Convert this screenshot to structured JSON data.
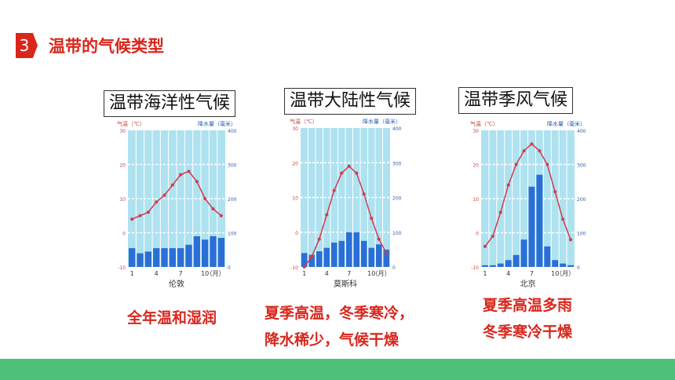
{
  "section": {
    "number": "3",
    "title": "温带的气候类型"
  },
  "charts": [
    {
      "title": "温带海洋性气候",
      "temp_label": "气温（℃）",
      "precip_label": "降水量（毫米）",
      "city": "伦敦",
      "caption": [
        "全年温和湿润"
      ]
    },
    {
      "title": "温带大陆性气候",
      "temp_label": "气温（℃）",
      "precip_label": "降水量（毫米）",
      "city": "莫斯科",
      "caption": [
        "夏季高温，冬季寒冷，",
        "降水稀少，气候干燥"
      ]
    },
    {
      "title": "温带季风气候",
      "temp_label": "气温（℃）",
      "precip_label": "降水量（毫米）",
      "city": "北京",
      "caption": [
        "夏季高温多雨",
        "冬季寒冷干燥"
      ]
    }
  ],
  "chart_data": [
    {
      "type": "bar",
      "title": "温带海洋性气候",
      "xlabel": "伦敦",
      "x_ticks": [
        "1",
        "4",
        "7",
        "10",
        "（月）"
      ],
      "temp_ticks": [
        "-10",
        "0",
        "10",
        "20",
        "30"
      ],
      "precip_ticks": [
        "0",
        "100",
        "200",
        "300",
        "400"
      ],
      "temp_range": [
        -10,
        30
      ],
      "precip_range": [
        0,
        400
      ],
      "temperature": [
        4,
        5,
        6,
        9,
        11,
        14,
        17,
        18,
        15,
        10,
        7,
        5
      ],
      "precipitation": [
        55,
        40,
        45,
        55,
        55,
        55,
        55,
        65,
        90,
        80,
        90,
        85
      ]
    },
    {
      "type": "bar",
      "title": "温带大陆性气候",
      "xlabel": "莫斯科",
      "x_ticks": [
        "1",
        "4",
        "7",
        "10",
        "（月）"
      ],
      "temp_ticks": [
        "-10",
        "0",
        "10",
        "20",
        "30"
      ],
      "precip_ticks": [
        "0",
        "100",
        "200",
        "300",
        "400"
      ],
      "temp_range": [
        -10,
        30
      ],
      "precip_range": [
        0,
        400
      ],
      "temperature": [
        -10,
        -7,
        -2,
        5,
        12,
        17,
        19,
        17,
        11,
        4,
        -2,
        -6
      ],
      "precipitation": [
        40,
        35,
        45,
        55,
        70,
        75,
        100,
        100,
        75,
        55,
        65,
        50
      ]
    },
    {
      "type": "bar",
      "title": "温带季风气候",
      "xlabel": "北京",
      "x_ticks": [
        "1",
        "4",
        "7",
        "10",
        "（月）"
      ],
      "temp_ticks": [
        "-10",
        "0",
        "10",
        "20",
        "30"
      ],
      "precip_ticks": [
        "0",
        "100",
        "200",
        "300",
        "400"
      ],
      "temp_range": [
        -10,
        30
      ],
      "precip_range": [
        0,
        400
      ],
      "temperature": [
        -4,
        -1,
        6,
        14,
        20,
        24,
        26,
        24,
        20,
        12,
        4,
        -2
      ],
      "precipitation": [
        5,
        5,
        10,
        20,
        35,
        80,
        235,
        270,
        60,
        20,
        10,
        5
      ]
    }
  ],
  "colors": {
    "accent": "#d9261c",
    "footer": "#4fc07a",
    "chart_bg": "#aee2f0",
    "bar": "#2b6fd6",
    "line": "#d43a4c"
  }
}
